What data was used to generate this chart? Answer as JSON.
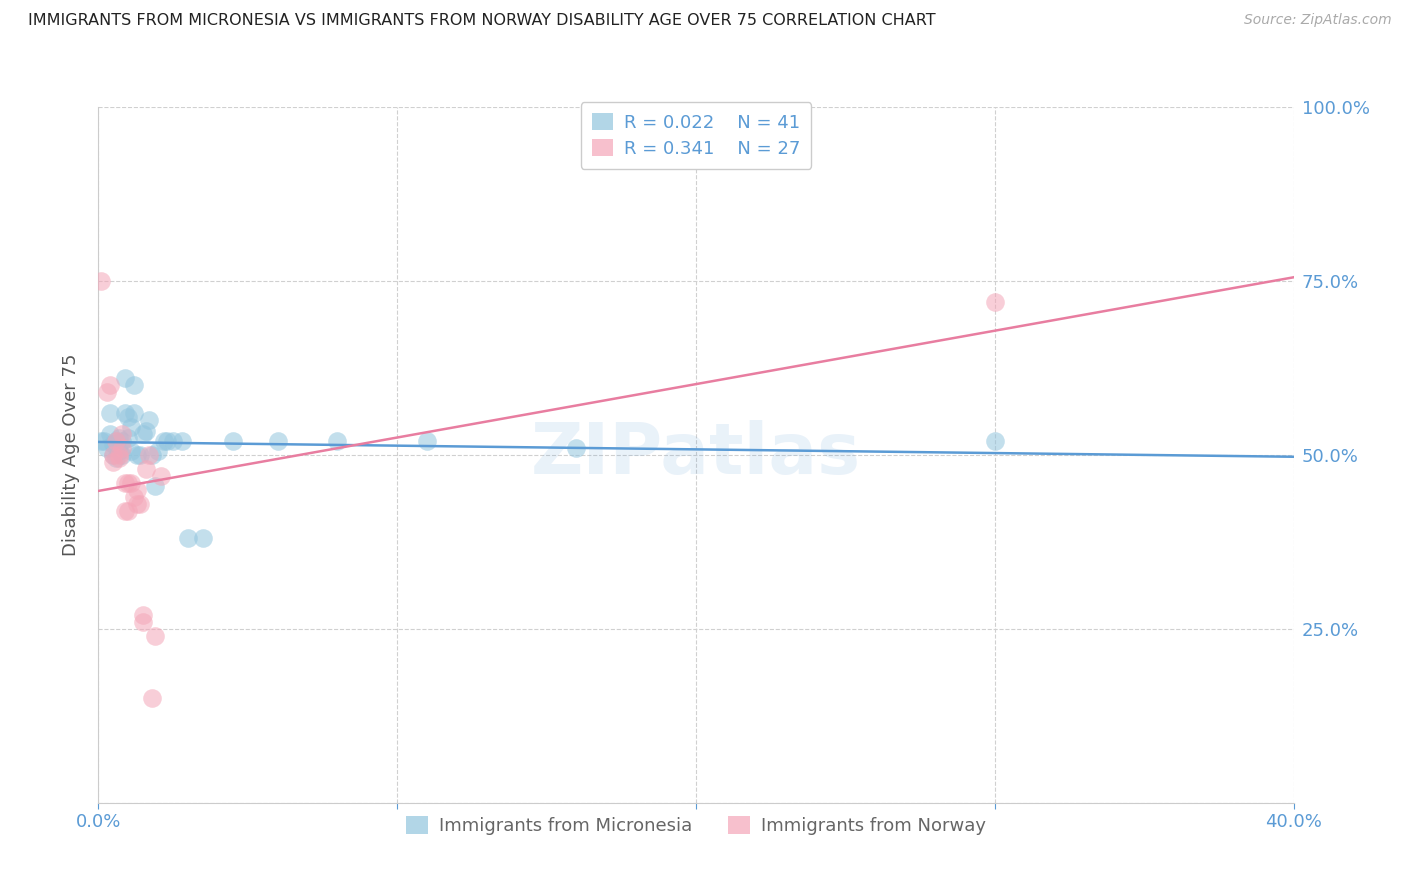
{
  "title": "IMMIGRANTS FROM MICRONESIA VS IMMIGRANTS FROM NORWAY DISABILITY AGE OVER 75 CORRELATION CHART",
  "source": "Source: ZipAtlas.com",
  "ylabel": "Disability Age Over 75",
  "yticks": [
    0.0,
    0.25,
    0.5,
    0.75,
    1.0
  ],
  "ytick_labels": [
    "",
    "25.0%",
    "50.0%",
    "75.0%",
    "100.0%"
  ],
  "xlim": [
    0.0,
    0.4
  ],
  "ylim": [
    0.0,
    1.0
  ],
  "legend_r1": "0.022",
  "legend_n1": "41",
  "legend_r2": "0.341",
  "legend_n2": "27",
  "blue_color": "#92c5de",
  "pink_color": "#f4a6b8",
  "line_blue": "#5b9bd5",
  "line_pink": "#e87da0",
  "text_blue": "#5b9bd5",
  "watermark": "ZIPatlas",
  "micronesia_x": [
    0.001,
    0.002,
    0.003,
    0.004,
    0.004,
    0.005,
    0.005,
    0.006,
    0.006,
    0.007,
    0.007,
    0.008,
    0.008,
    0.009,
    0.009,
    0.01,
    0.01,
    0.011,
    0.011,
    0.012,
    0.012,
    0.013,
    0.014,
    0.015,
    0.016,
    0.017,
    0.018,
    0.019,
    0.02,
    0.022,
    0.023,
    0.025,
    0.028,
    0.03,
    0.035,
    0.045,
    0.06,
    0.08,
    0.11,
    0.16,
    0.3
  ],
  "micronesia_y": [
    0.52,
    0.52,
    0.51,
    0.53,
    0.56,
    0.515,
    0.5,
    0.52,
    0.495,
    0.525,
    0.505,
    0.52,
    0.5,
    0.61,
    0.56,
    0.555,
    0.525,
    0.54,
    0.505,
    0.56,
    0.6,
    0.5,
    0.5,
    0.53,
    0.535,
    0.55,
    0.5,
    0.455,
    0.505,
    0.52,
    0.52,
    0.52,
    0.52,
    0.38,
    0.38,
    0.52,
    0.52,
    0.52,
    0.52,
    0.51,
    0.52
  ],
  "norway_x": [
    0.001,
    0.003,
    0.004,
    0.005,
    0.005,
    0.006,
    0.007,
    0.007,
    0.008,
    0.008,
    0.009,
    0.009,
    0.01,
    0.01,
    0.011,
    0.012,
    0.013,
    0.013,
    0.014,
    0.015,
    0.015,
    0.016,
    0.017,
    0.018,
    0.019,
    0.021,
    0.3
  ],
  "norway_y": [
    0.75,
    0.59,
    0.6,
    0.5,
    0.49,
    0.52,
    0.5,
    0.495,
    0.53,
    0.51,
    0.46,
    0.42,
    0.46,
    0.42,
    0.46,
    0.44,
    0.45,
    0.43,
    0.43,
    0.27,
    0.26,
    0.48,
    0.5,
    0.15,
    0.24,
    0.47,
    0.72
  ]
}
